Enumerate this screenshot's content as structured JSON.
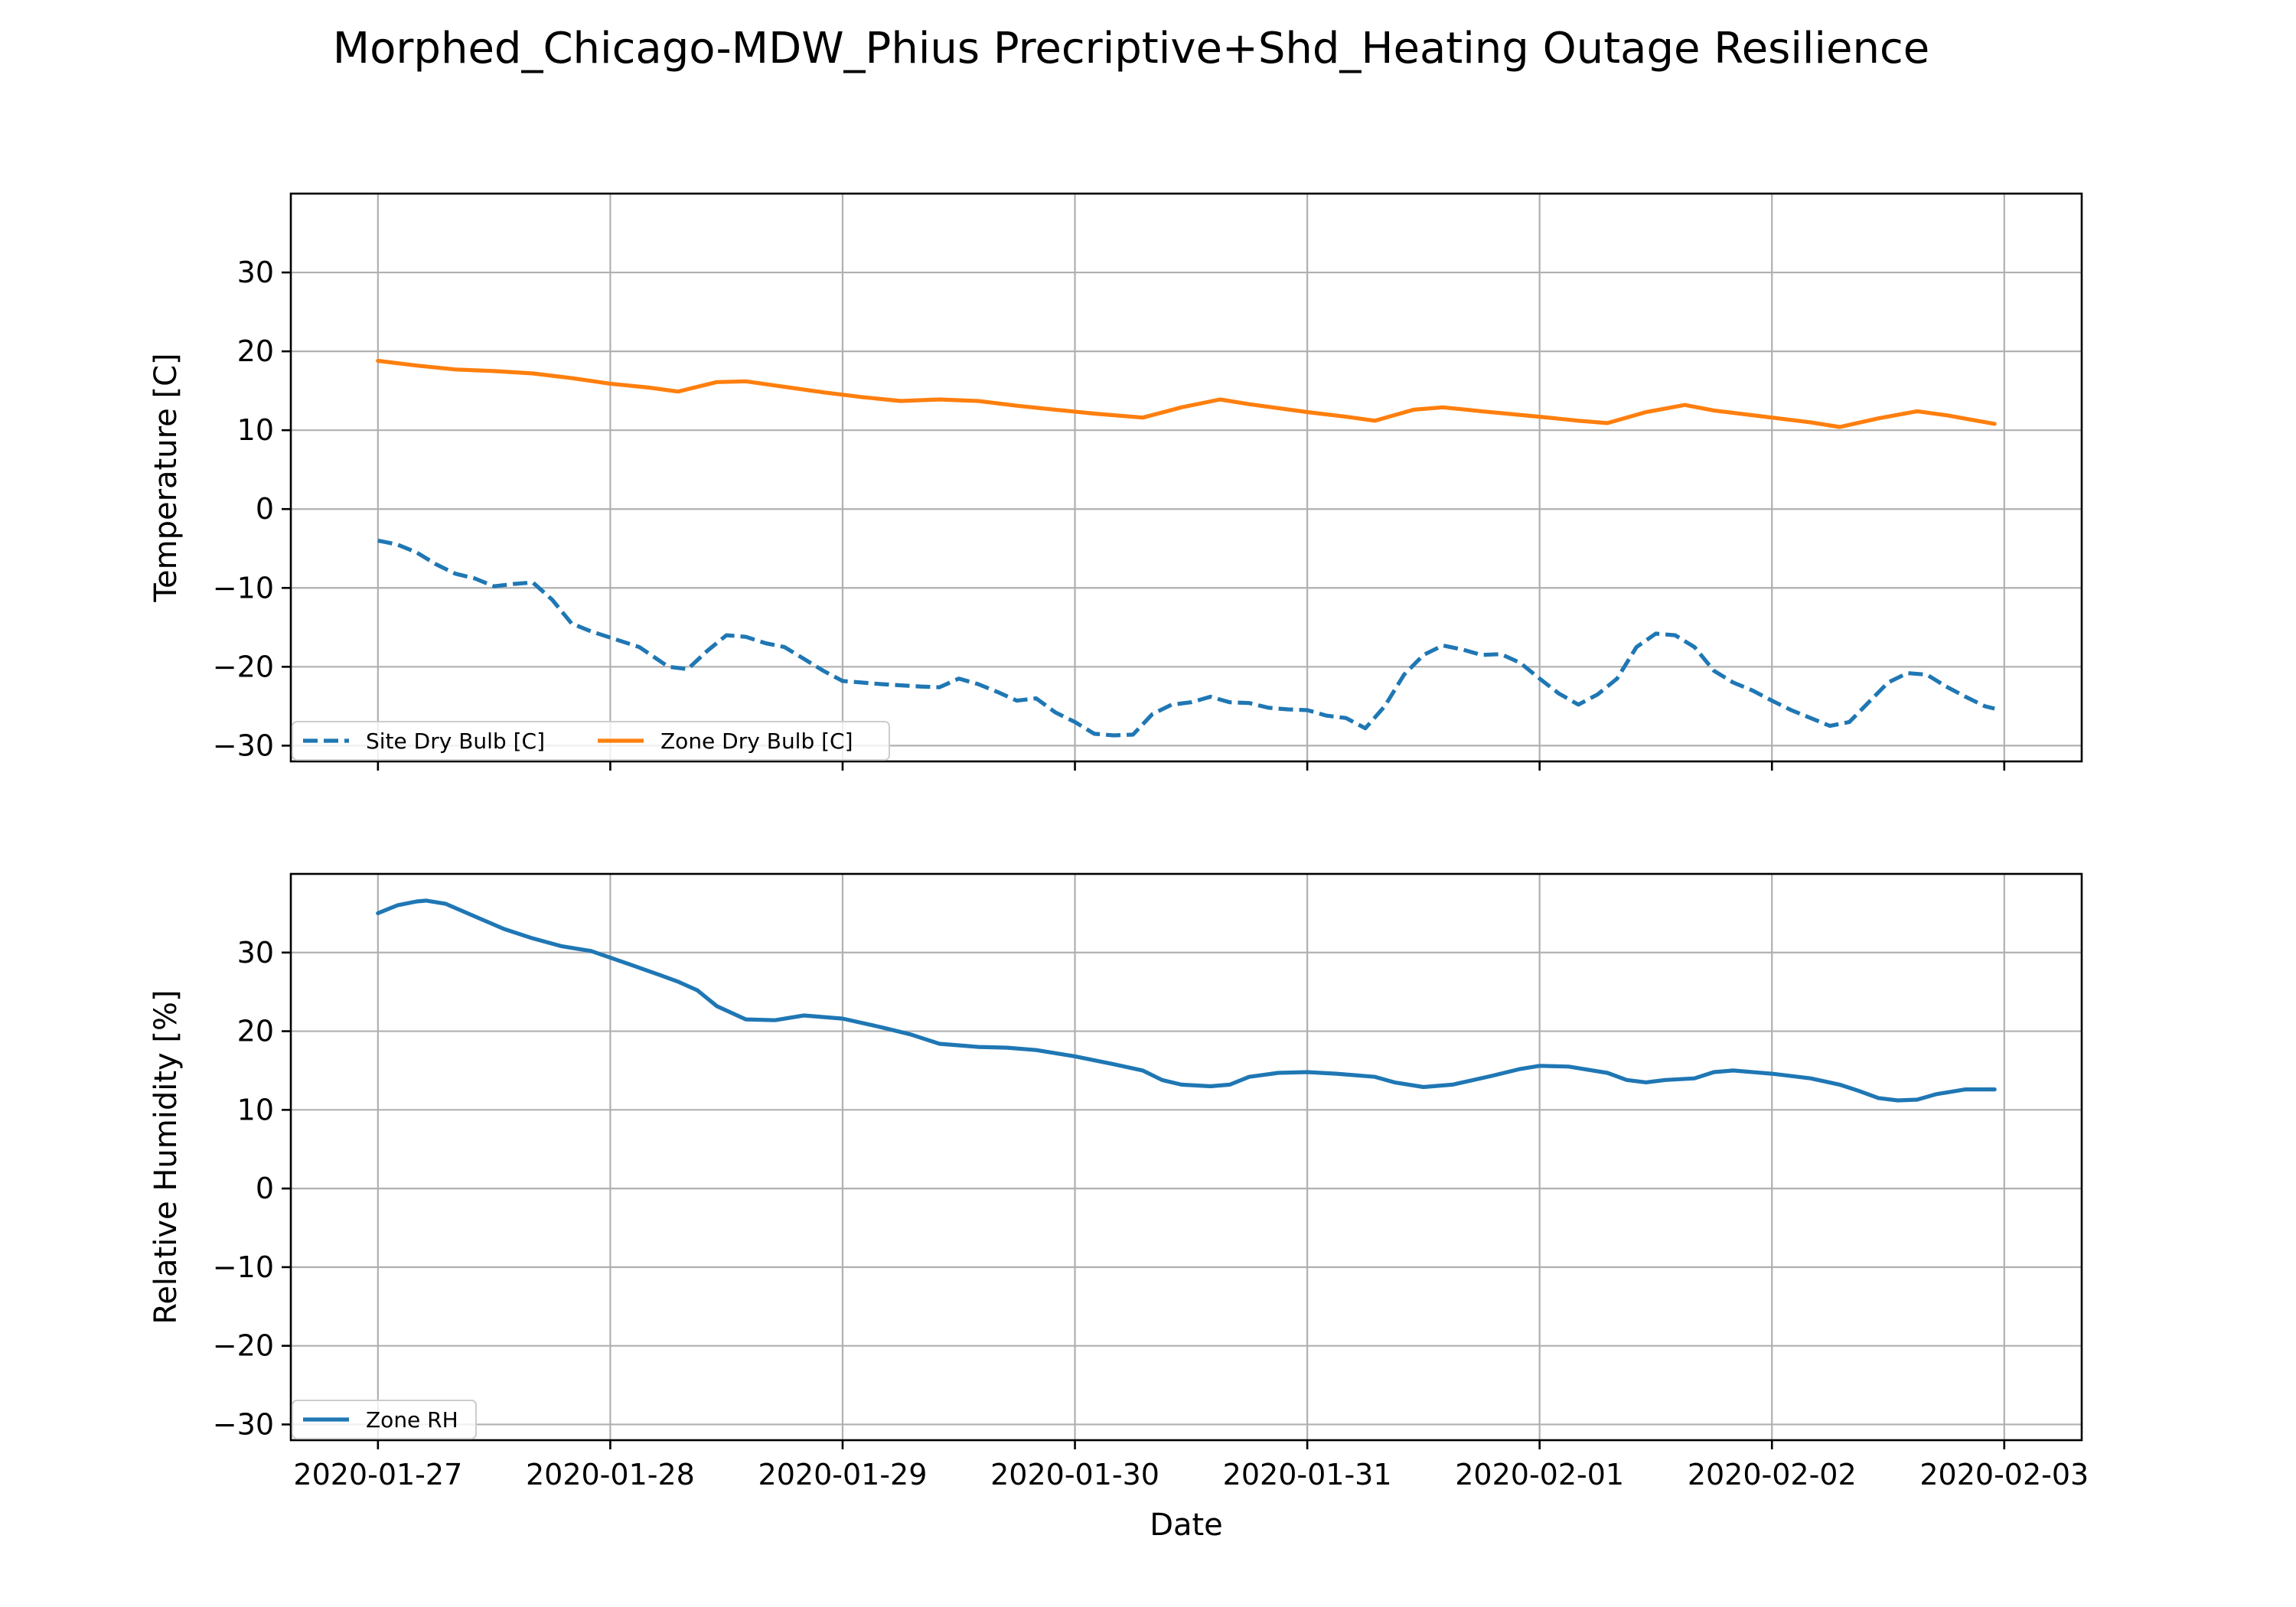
{
  "figure": {
    "title": "Morphed_Chicago-MDW_Phius Precriptive+Shd_Heating Outage Resilience"
  },
  "chart_data": [
    {
      "type": "line",
      "xlabel": "",
      "ylabel": "Temperature [C]",
      "x_type": "date",
      "xlim": [
        "2020-01-26T15:00",
        "2020-02-03T08:00"
      ],
      "ylim": [
        -32,
        40
      ],
      "yticks": [
        -30,
        -20,
        -10,
        0,
        10,
        20,
        30
      ],
      "ytick_labels": [
        "−30",
        "−20",
        "−10",
        "0",
        "10",
        "20",
        "30"
      ],
      "xticks": [
        "2020-01-27",
        "2020-01-28",
        "2020-01-29",
        "2020-01-30",
        "2020-01-31",
        "2020-02-01",
        "2020-02-02",
        "2020-02-03"
      ],
      "xtick_labels": [],
      "grid": true,
      "legend_position": "lower-left",
      "legend_columns": 2,
      "series": [
        {
          "name": "Site Dry Bulb [C]",
          "color": "#1f77b4",
          "style": "dashed",
          "x": [
            "2020-01-27T00:00",
            "2020-01-27T02:00",
            "2020-01-27T04:00",
            "2020-01-27T06:00",
            "2020-01-27T08:00",
            "2020-01-27T10:00",
            "2020-01-27T12:00",
            "2020-01-27T14:00",
            "2020-01-27T16:00",
            "2020-01-27T18:00",
            "2020-01-27T20:00",
            "2020-01-27T22:00",
            "2020-01-28T00:00",
            "2020-01-28T03:00",
            "2020-01-28T06:00",
            "2020-01-28T08:00",
            "2020-01-28T10:00",
            "2020-01-28T12:00",
            "2020-01-28T14:00",
            "2020-01-28T16:00",
            "2020-01-28T18:00",
            "2020-01-28T20:00",
            "2020-01-28T22:00",
            "2020-01-29T00:00",
            "2020-01-29T04:00",
            "2020-01-29T08:00",
            "2020-01-29T10:00",
            "2020-01-29T12:00",
            "2020-01-29T14:00",
            "2020-01-29T16:00",
            "2020-01-29T18:00",
            "2020-01-29T20:00",
            "2020-01-29T22:00",
            "2020-01-30T00:00",
            "2020-01-30T02:00",
            "2020-01-30T04:00",
            "2020-01-30T06:00",
            "2020-01-30T08:00",
            "2020-01-30T10:00",
            "2020-01-30T12:00",
            "2020-01-30T14:00",
            "2020-01-30T16:00",
            "2020-01-30T18:00",
            "2020-01-30T20:00",
            "2020-01-30T22:00",
            "2020-01-31T00:00",
            "2020-01-31T02:00",
            "2020-01-31T04:00",
            "2020-01-31T06:00",
            "2020-01-31T08:00",
            "2020-01-31T10:00",
            "2020-01-31T12:00",
            "2020-01-31T14:00",
            "2020-01-31T16:00",
            "2020-01-31T18:00",
            "2020-01-31T20:00",
            "2020-01-31T22:00",
            "2020-02-01T00:00",
            "2020-02-01T02:00",
            "2020-02-01T04:00",
            "2020-02-01T06:00",
            "2020-02-01T08:00",
            "2020-02-01T10:00",
            "2020-02-01T12:00",
            "2020-02-01T14:00",
            "2020-02-01T16:00",
            "2020-02-01T18:00",
            "2020-02-01T20:00",
            "2020-02-01T22:00",
            "2020-02-02T00:00",
            "2020-02-02T02:00",
            "2020-02-02T04:00",
            "2020-02-02T06:00",
            "2020-02-02T08:00",
            "2020-02-02T10:00",
            "2020-02-02T12:00",
            "2020-02-02T14:00",
            "2020-02-02T16:00",
            "2020-02-02T18:00",
            "2020-02-02T20:00",
            "2020-02-02T22:00",
            "2020-02-02T23:00"
          ],
          "y": [
            -4,
            -4.5,
            -5.5,
            -7,
            -8.2,
            -8.8,
            -9.8,
            -9.5,
            -9.3,
            -11.5,
            -14.5,
            -15.5,
            -16.3,
            -17.5,
            -20,
            -20.3,
            -18,
            -16,
            -16.2,
            -17,
            -17.5,
            -19,
            -20.5,
            -21.8,
            -22.2,
            -22.5,
            -22.6,
            -21.5,
            -22.2,
            -23.2,
            -24.3,
            -24,
            -25.8,
            -27,
            -28.5,
            -28.7,
            -28.6,
            -26,
            -24.8,
            -24.5,
            -23.8,
            -24.5,
            -24.6,
            -25.2,
            -25.4,
            -25.5,
            -26.2,
            -26.5,
            -27.8,
            -25,
            -21,
            -18.5,
            -17.3,
            -17.8,
            -18.5,
            -18.4,
            -19.5,
            -21.5,
            -23.4,
            -24.8,
            -23.5,
            -21.5,
            -17.5,
            -15.8,
            -16,
            -17.5,
            -20.5,
            -22,
            -23,
            -24.3,
            -25.5,
            -26.5,
            -27.5,
            -27,
            -24.5,
            -22,
            -20.8,
            -21,
            -22.5,
            -23.8,
            -25,
            -25.3
          ]
        },
        {
          "name": "Zone Dry Bulb [C]",
          "color": "#ff7f0e",
          "style": "solid",
          "x": [
            "2020-01-27T00:00",
            "2020-01-27T04:00",
            "2020-01-27T08:00",
            "2020-01-27T12:00",
            "2020-01-27T16:00",
            "2020-01-27T20:00",
            "2020-01-28T00:00",
            "2020-01-28T04:00",
            "2020-01-28T07:00",
            "2020-01-28T11:00",
            "2020-01-28T14:00",
            "2020-01-28T18:00",
            "2020-01-28T22:00",
            "2020-01-29T02:00",
            "2020-01-29T06:00",
            "2020-01-29T10:00",
            "2020-01-29T14:00",
            "2020-01-29T18:00",
            "2020-01-29T22:00",
            "2020-01-30T02:00",
            "2020-01-30T07:00",
            "2020-01-30T11:00",
            "2020-01-30T15:00",
            "2020-01-30T18:00",
            "2020-01-31T00:00",
            "2020-01-31T04:00",
            "2020-01-31T07:00",
            "2020-01-31T11:00",
            "2020-01-31T14:00",
            "2020-01-31T18:00",
            "2020-02-01T00:00",
            "2020-02-01T04:00",
            "2020-02-01T07:00",
            "2020-02-01T11:00",
            "2020-02-01T15:00",
            "2020-02-01T18:00",
            "2020-02-02T00:00",
            "2020-02-02T04:00",
            "2020-02-02T07:00",
            "2020-02-02T11:00",
            "2020-02-02T15:00",
            "2020-02-02T18:00",
            "2020-02-02T23:00"
          ],
          "y": [
            18.8,
            18.2,
            17.7,
            17.5,
            17.2,
            16.6,
            15.9,
            15.4,
            14.9,
            16.1,
            16.2,
            15.5,
            14.8,
            14.2,
            13.7,
            13.9,
            13.7,
            13.1,
            12.6,
            12.1,
            11.6,
            12.9,
            13.9,
            13.3,
            12.3,
            11.7,
            11.2,
            12.6,
            12.9,
            12.4,
            11.7,
            11.2,
            10.9,
            12.3,
            13.2,
            12.5,
            11.6,
            11,
            10.4,
            11.5,
            12.4,
            11.9,
            10.8
          ]
        }
      ]
    },
    {
      "type": "line",
      "xlabel": "Date",
      "ylabel": "Relative Humidity [%]",
      "x_type": "date",
      "xlim": [
        "2020-01-26T15:00",
        "2020-02-03T08:00"
      ],
      "ylim": [
        -32,
        40
      ],
      "yticks": [
        -30,
        -20,
        -10,
        0,
        10,
        20,
        30
      ],
      "ytick_labels": [
        "−30",
        "−20",
        "−10",
        "0",
        "10",
        "20",
        "30"
      ],
      "xticks": [
        "2020-01-27",
        "2020-01-28",
        "2020-01-29",
        "2020-01-30",
        "2020-01-31",
        "2020-02-01",
        "2020-02-02",
        "2020-02-03"
      ],
      "xtick_labels": [
        "2020-01-27",
        "2020-01-28",
        "2020-01-29",
        "2020-01-30",
        "2020-01-31",
        "2020-02-01",
        "2020-02-02",
        "2020-02-03"
      ],
      "grid": true,
      "legend_position": "lower-left",
      "legend_columns": 1,
      "series": [
        {
          "name": "Zone RH",
          "color": "#1f77b4",
          "style": "solid",
          "x": [
            "2020-01-27T00:00",
            "2020-01-27T02:00",
            "2020-01-27T04:00",
            "2020-01-27T05:00",
            "2020-01-27T07:00",
            "2020-01-27T10:00",
            "2020-01-27T13:00",
            "2020-01-27T16:00",
            "2020-01-27T19:00",
            "2020-01-27T22:00",
            "2020-01-28T02:00",
            "2020-01-28T05:00",
            "2020-01-28T07:00",
            "2020-01-28T09:00",
            "2020-01-28T11:00",
            "2020-01-28T14:00",
            "2020-01-28T17:00",
            "2020-01-28T20:00",
            "2020-01-29T00:00",
            "2020-01-29T04:00",
            "2020-01-29T07:00",
            "2020-01-29T10:00",
            "2020-01-29T14:00",
            "2020-01-29T17:00",
            "2020-01-29T20:00",
            "2020-01-30T00:00",
            "2020-01-30T04:00",
            "2020-01-30T07:00",
            "2020-01-30T09:00",
            "2020-01-30T11:00",
            "2020-01-30T14:00",
            "2020-01-30T16:00",
            "2020-01-30T18:00",
            "2020-01-30T21:00",
            "2020-01-31T00:00",
            "2020-01-31T03:00",
            "2020-01-31T07:00",
            "2020-01-31T09:00",
            "2020-01-31T12:00",
            "2020-01-31T15:00",
            "2020-01-31T19:00",
            "2020-01-31T22:00",
            "2020-02-01T00:00",
            "2020-02-01T03:00",
            "2020-02-01T07:00",
            "2020-02-01T09:00",
            "2020-02-01T11:00",
            "2020-02-01T13:00",
            "2020-02-01T16:00",
            "2020-02-01T18:00",
            "2020-02-01T20:00",
            "2020-02-02T00:00",
            "2020-02-02T04:00",
            "2020-02-02T07:00",
            "2020-02-02T09:00",
            "2020-02-02T11:00",
            "2020-02-02T13:00",
            "2020-02-02T15:00",
            "2020-02-02T17:00",
            "2020-02-02T20:00",
            "2020-02-02T23:00"
          ],
          "y": [
            35,
            36,
            36.5,
            36.6,
            36.2,
            34.6,
            33,
            31.8,
            30.8,
            30.2,
            28.5,
            27.2,
            26.3,
            25.2,
            23.2,
            21.5,
            21.4,
            22,
            21.6,
            20.5,
            19.6,
            18.4,
            18,
            17.9,
            17.6,
            16.8,
            15.8,
            15,
            13.8,
            13.2,
            13,
            13.2,
            14.2,
            14.7,
            14.8,
            14.6,
            14.2,
            13.5,
            12.9,
            13.2,
            14.3,
            15.2,
            15.6,
            15.5,
            14.7,
            13.8,
            13.5,
            13.8,
            14,
            14.8,
            15,
            14.6,
            14,
            13.2,
            12.4,
            11.5,
            11.2,
            11.3,
            12,
            12.6,
            12.6
          ]
        }
      ]
    }
  ]
}
